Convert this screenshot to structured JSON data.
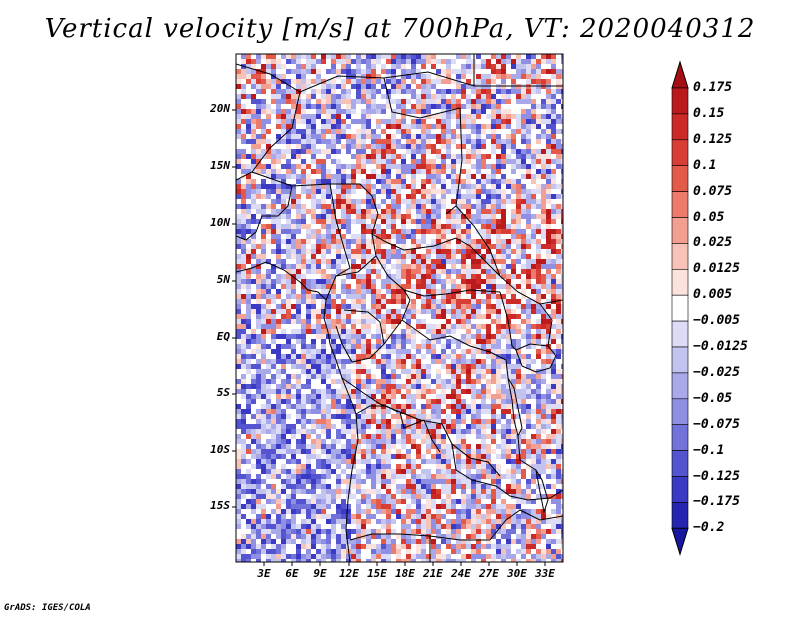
{
  "title": "Vertical velocity [m/s] at 700hPa, VT: 2020040312",
  "map": {
    "lat_labels": [
      "20N",
      "15N",
      "10N",
      "5N",
      "EQ",
      "5S",
      "10S",
      "15S"
    ],
    "lon_labels": [
      "3E",
      "6E",
      "9E",
      "12E",
      "15E",
      "18E",
      "21E",
      "24E",
      "27E",
      "30E",
      "33E"
    ]
  },
  "colorbar": {
    "labels": [
      "0.175",
      "0.15",
      "0.125",
      "0.1",
      "0.075",
      "0.05",
      "0.025",
      "0.0125",
      "0.005",
      "−0.005",
      "−0.0125",
      "−0.025",
      "−0.05",
      "−0.075",
      "−0.1",
      "−0.125",
      "−0.175",
      "−0.2"
    ],
    "colors": [
      "#a50f15",
      "#bb1a1d",
      "#cb2a27",
      "#d83e35",
      "#e45a4a",
      "#ec7b6b",
      "#f29e91",
      "#f7c3b9",
      "#fbe2dc",
      "#ffffff",
      "#dcdcf6",
      "#c3c3f0",
      "#a9a9ea",
      "#8f8fe3",
      "#7272db",
      "#5454d0",
      "#3a3ac4",
      "#2525b2",
      "#1717a0"
    ]
  },
  "credit": "GrADS: IGES/COLA"
}
